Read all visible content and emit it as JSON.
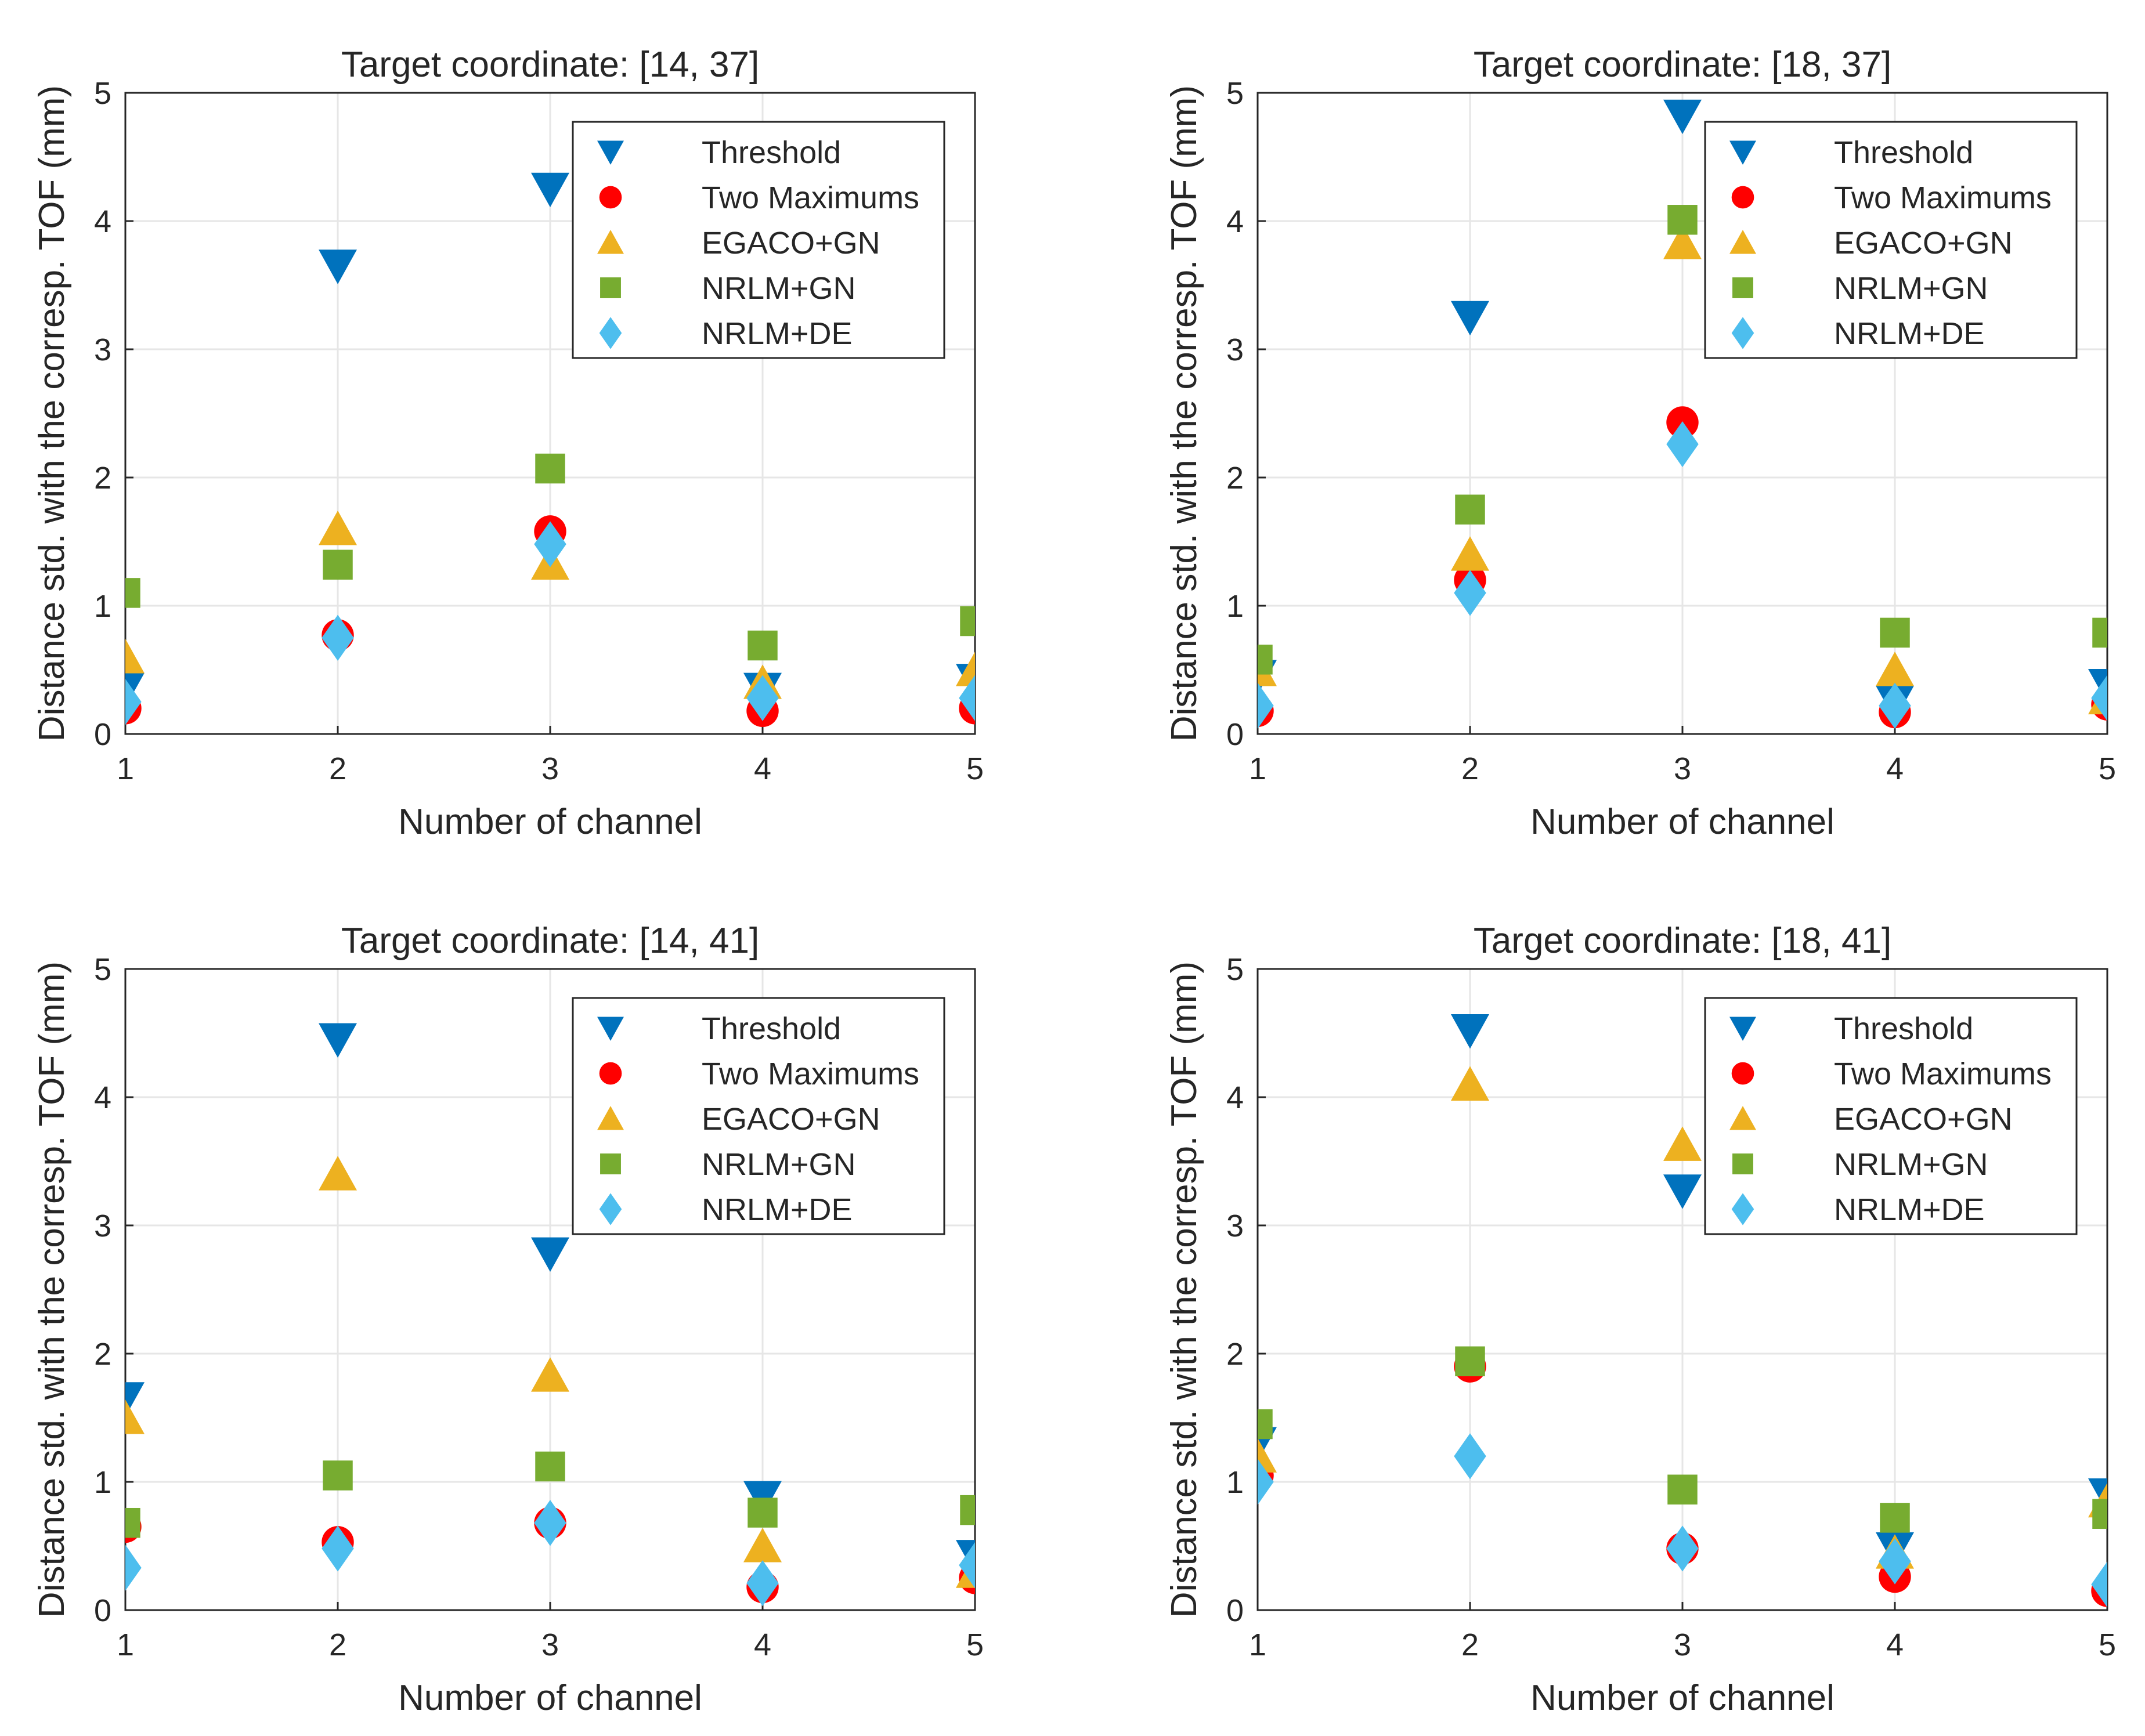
{
  "colors": {
    "threshold": "#0072BD",
    "two_maximums": "#FF0000",
    "egaco_gn": "#EDB120",
    "nrlm_gn": "#77AC30",
    "nrlm_de": "#4DBEEE",
    "axis": "#262626",
    "grid": "#E6E6E6"
  },
  "chart_data": [
    {
      "type": "scatter",
      "title": "Target coordinate: [14, 37]",
      "xlabel": "Number of channel",
      "ylabel": "Distance std. with the corresp. TOF (mm)",
      "x": [
        1,
        2,
        3,
        4,
        5
      ],
      "xlim": [
        1,
        5
      ],
      "ylim": [
        0,
        5
      ],
      "xticks": [
        "1",
        "2",
        "3",
        "4",
        "5"
      ],
      "yticks": [
        "0",
        "1",
        "2",
        "3",
        "4",
        "5"
      ],
      "grid": true,
      "legend_position": "top-right",
      "series": [
        {
          "name": "Threshold",
          "marker": "triangle-down",
          "color": "#0072BD",
          "values": [
            0.35,
            3.65,
            4.25,
            0.35,
            0.42
          ]
        },
        {
          "name": "Two Maximums",
          "marker": "circle",
          "color": "#FF0000",
          "values": [
            0.2,
            0.77,
            1.58,
            0.18,
            0.2
          ]
        },
        {
          "name": "EGACO+GN",
          "marker": "triangle-up",
          "color": "#EDB120",
          "values": [
            0.6,
            1.6,
            1.33,
            0.4,
            0.5
          ]
        },
        {
          "name": "NRLM+GN",
          "marker": "square",
          "color": "#77AC30",
          "values": [
            1.1,
            1.32,
            2.07,
            0.69,
            0.88
          ]
        },
        {
          "name": "NRLM+DE",
          "marker": "diamond",
          "color": "#4DBEEE",
          "values": [
            0.25,
            0.75,
            1.48,
            0.28,
            0.28
          ]
        }
      ]
    },
    {
      "type": "scatter",
      "title": "Target coordinate: [18, 37]",
      "xlabel": "Number of channel",
      "ylabel": "Distance std. with the corresp. TOF (mm)",
      "x": [
        1,
        2,
        3,
        4,
        5
      ],
      "xlim": [
        1,
        5
      ],
      "ylim": [
        0,
        5
      ],
      "xticks": [
        "1",
        "2",
        "3",
        "4",
        "5"
      ],
      "yticks": [
        "0",
        "1",
        "2",
        "3",
        "4",
        "5"
      ],
      "grid": true,
      "legend_position": "top-right",
      "series": [
        {
          "name": "Threshold",
          "marker": "triangle-down",
          "color": "#0072BD",
          "values": [
            0.45,
            3.25,
            4.82,
            0.25,
            0.38
          ]
        },
        {
          "name": "Two Maximums",
          "marker": "circle",
          "color": "#FF0000",
          "values": [
            0.18,
            1.2,
            2.43,
            0.17,
            0.23
          ]
        },
        {
          "name": "EGACO+GN",
          "marker": "triangle-up",
          "color": "#EDB120",
          "values": [
            0.5,
            1.4,
            3.83,
            0.5,
            0.28
          ]
        },
        {
          "name": "NRLM+GN",
          "marker": "square",
          "color": "#77AC30",
          "values": [
            0.58,
            1.75,
            4.01,
            0.79,
            0.79
          ]
        },
        {
          "name": "NRLM+DE",
          "marker": "diamond",
          "color": "#4DBEEE",
          "values": [
            0.22,
            1.1,
            2.26,
            0.22,
            0.28
          ]
        }
      ]
    },
    {
      "type": "scatter",
      "title": "Target coordinate: [14, 41]",
      "xlabel": "Number of channel",
      "ylabel": "Distance std. with the corresp. TOF (mm)",
      "x": [
        1,
        2,
        3,
        4,
        5
      ],
      "xlim": [
        1,
        5
      ],
      "ylim": [
        0,
        5
      ],
      "xticks": [
        "1",
        "2",
        "3",
        "4",
        "5"
      ],
      "yticks": [
        "0",
        "1",
        "2",
        "3",
        "4",
        "5"
      ],
      "grid": true,
      "legend_position": "top-right",
      "series": [
        {
          "name": "Threshold",
          "marker": "triangle-down",
          "color": "#0072BD",
          "values": [
            1.65,
            4.45,
            2.78,
            0.88,
            0.42
          ]
        },
        {
          "name": "Two Maximums",
          "marker": "circle",
          "color": "#FF0000",
          "values": [
            0.65,
            0.53,
            0.68,
            0.18,
            0.25
          ]
        },
        {
          "name": "EGACO+GN",
          "marker": "triangle-up",
          "color": "#EDB120",
          "values": [
            1.5,
            3.4,
            1.83,
            0.5,
            0.3
          ]
        },
        {
          "name": "NRLM+GN",
          "marker": "square",
          "color": "#77AC30",
          "values": [
            0.68,
            1.05,
            1.12,
            0.76,
            0.78
          ]
        },
        {
          "name": "NRLM+DE",
          "marker": "diamond",
          "color": "#4DBEEE",
          "values": [
            0.33,
            0.48,
            0.68,
            0.21,
            0.35
          ]
        }
      ]
    },
    {
      "type": "scatter",
      "title": "Target coordinate: [18, 41]",
      "xlabel": "Number of channel",
      "ylabel": "Distance std. with the corresp. TOF (mm)",
      "x": [
        1,
        2,
        3,
        4,
        5
      ],
      "xlim": [
        1,
        5
      ],
      "ylim": [
        0,
        5
      ],
      "xticks": [
        "1",
        "2",
        "3",
        "4",
        "5"
      ],
      "yticks": [
        "0",
        "1",
        "2",
        "3",
        "4",
        "5"
      ],
      "grid": true,
      "legend_position": "top-right",
      "series": [
        {
          "name": "Threshold",
          "marker": "triangle-down",
          "color": "#0072BD",
          "values": [
            1.3,
            4.52,
            3.27,
            0.48,
            0.9
          ]
        },
        {
          "name": "Two Maximums",
          "marker": "circle",
          "color": "#FF0000",
          "values": [
            1.05,
            1.9,
            0.48,
            0.26,
            0.15
          ]
        },
        {
          "name": "EGACO+GN",
          "marker": "triangle-up",
          "color": "#EDB120",
          "values": [
            1.2,
            4.1,
            3.63,
            0.45,
            0.85
          ]
        },
        {
          "name": "NRLM+GN",
          "marker": "square",
          "color": "#77AC30",
          "values": [
            1.45,
            1.94,
            0.94,
            0.72,
            0.75
          ]
        },
        {
          "name": "NRLM+DE",
          "marker": "diamond",
          "color": "#4DBEEE",
          "values": [
            1.0,
            1.2,
            0.48,
            0.38,
            0.2
          ]
        }
      ]
    }
  ]
}
